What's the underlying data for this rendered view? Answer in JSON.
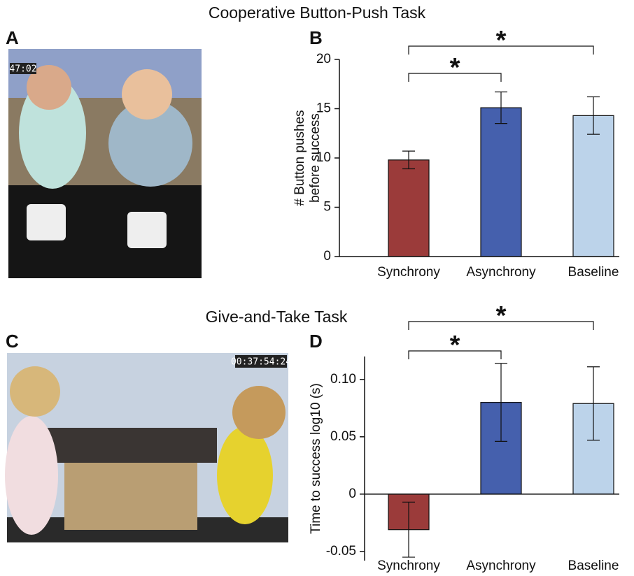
{
  "sections": [
    {
      "title": "Cooperative Button-Push Task",
      "photo_panel": "A",
      "photo_timestamp": "47:02"
    },
    {
      "title": "Give-and-Take Task",
      "photo_panel": "C",
      "photo_timestamp": "00:37:54:24"
    }
  ],
  "chart_data": [
    {
      "type": "bar",
      "panel": "B",
      "ylabel": [
        "# Button pushes",
        "before success"
      ],
      "categories": [
        "Synchrony",
        "Asynchrony",
        "Baseline"
      ],
      "values": [
        9.8,
        15.1,
        14.3
      ],
      "errors": [
        0.9,
        1.6,
        1.9
      ],
      "colors": [
        "#9b3b3a",
        "#4560ad",
        "#bcd3ea"
      ],
      "ylim": [
        0,
        20
      ],
      "yticks": [
        0,
        5,
        10,
        15,
        20
      ],
      "significance": [
        {
          "from": "Synchrony",
          "to": "Asynchrony",
          "label": "*"
        },
        {
          "from": "Synchrony",
          "to": "Baseline",
          "label": "*"
        }
      ]
    },
    {
      "type": "bar",
      "panel": "D",
      "ylabel": [
        "Time to success log10 (s)"
      ],
      "categories": [
        "Synchrony",
        "Asynchrony",
        "Baseline"
      ],
      "values": [
        -0.031,
        0.08,
        0.079
      ],
      "errors": [
        0.024,
        0.034,
        0.032
      ],
      "colors": [
        "#9b3b3a",
        "#4560ad",
        "#bcd3ea"
      ],
      "ylim": [
        -0.058,
        0.12
      ],
      "yticks": [
        -0.05,
        0,
        0.05,
        {
          "value": 0.1,
          "label": "0.10"
        }
      ],
      "significance": [
        {
          "from": "Synchrony",
          "to": "Asynchrony",
          "label": "*"
        },
        {
          "from": "Synchrony",
          "to": "Baseline",
          "label": "*"
        }
      ]
    }
  ]
}
